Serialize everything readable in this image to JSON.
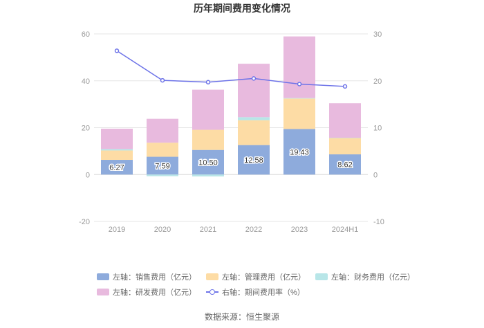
{
  "chart_data": {
    "type": "bar",
    "title": "历年期间费用变化情况",
    "categories": [
      "2019",
      "2020",
      "2021",
      "2022",
      "2023",
      "2024H1"
    ],
    "left_axis": {
      "ylim": [
        -20,
        60
      ],
      "ticks": [
        "-20",
        "0",
        "20",
        "40",
        "60"
      ]
    },
    "right_axis": {
      "ylim": [
        -10,
        30
      ],
      "ticks": [
        "-10",
        "0",
        "10",
        "20",
        "30"
      ]
    },
    "series": [
      {
        "name": "左轴：销售费用（亿元）",
        "color": "#8eabdc",
        "values": [
          6.27,
          7.59,
          10.5,
          12.58,
          19.43,
          8.62
        ],
        "labels": [
          "6.27",
          "7.59",
          "10.50",
          "12.58",
          "19.43",
          "8.62"
        ]
      },
      {
        "name": "左轴：管理费用（亿元）",
        "color": "#fddca5",
        "values": [
          4.0,
          6.0,
          8.6,
          10.6,
          13.0,
          7.0
        ]
      },
      {
        "name": "左轴：财务费用（亿元）",
        "color": "#b8e6e8",
        "values": [
          0.6,
          -0.7,
          -0.8,
          1.3,
          0.2,
          0.1
        ]
      },
      {
        "name": "左轴：研发费用（亿元）",
        "color": "#e8bade",
        "values": [
          8.7,
          10.2,
          17.1,
          22.8,
          26.3,
          14.7
        ]
      },
      {
        "name": "右轴：期间费用率（%）",
        "color": "#6d73e8",
        "type": "line",
        "axis": "right",
        "values": [
          26.4,
          20.1,
          19.7,
          20.5,
          19.3,
          18.8
        ]
      }
    ]
  },
  "source": "数据来源：恒生聚源"
}
